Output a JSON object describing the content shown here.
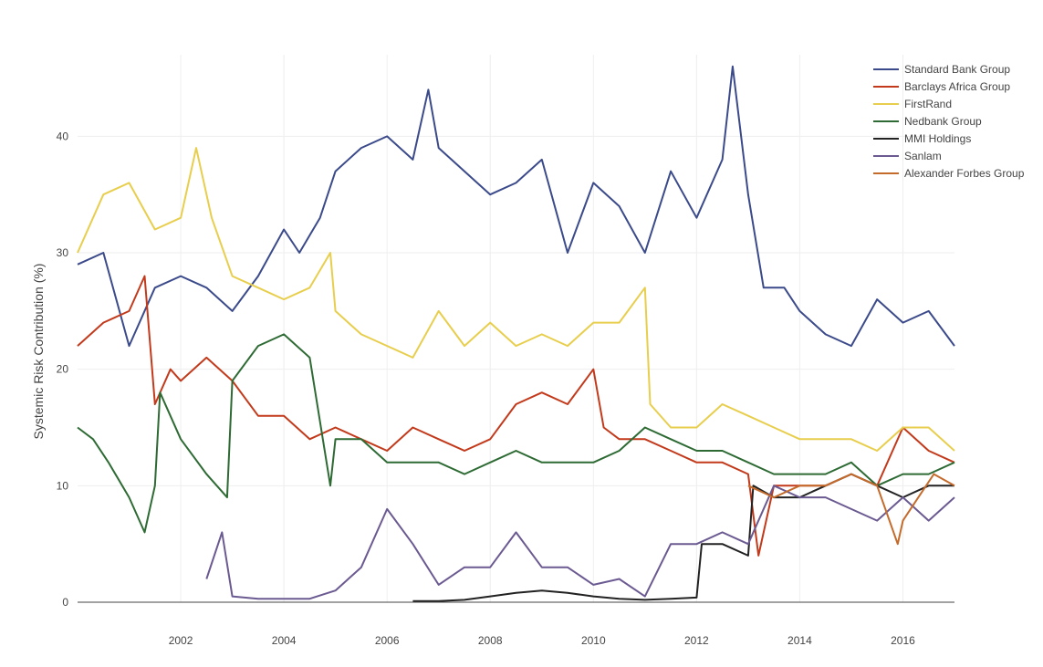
{
  "chart_data": {
    "type": "line",
    "title": "",
    "xlabel": "",
    "ylabel": "Systemic Risk Contribution (%)",
    "xlim": [
      2000.0,
      2017.0
    ],
    "ylim": [
      0,
      47
    ],
    "grid": true,
    "legend_position": "top-right",
    "x_ticks": [
      2002,
      2004,
      2006,
      2008,
      2010,
      2012,
      2014,
      2016
    ],
    "x_tick_labels": [
      "2002",
      "2004",
      "2006",
      "2008",
      "2010",
      "2012",
      "2014",
      "2016"
    ],
    "y_ticks": [
      0,
      10,
      20,
      30,
      40
    ],
    "y_tick_labels": [
      "0",
      "10",
      "20",
      "30",
      "40"
    ],
    "series": [
      {
        "name": "Standard Bank Group",
        "color": "#3b4a8a",
        "x": [
          2000.0,
          2000.5,
          2001.0,
          2001.5,
          2002.0,
          2002.5,
          2003.0,
          2003.5,
          2004.0,
          2004.3,
          2004.7,
          2005.0,
          2005.5,
          2006.0,
          2006.5,
          2006.8,
          2007.0,
          2007.5,
          2008.0,
          2008.5,
          2009.0,
          2009.5,
          2010.0,
          2010.5,
          2011.0,
          2011.5,
          2012.0,
          2012.5,
          2012.7,
          2013.0,
          2013.3,
          2013.7,
          2014.0,
          2014.5,
          2015.0,
          2015.5,
          2016.0,
          2016.5,
          2017.0
        ],
        "y": [
          29,
          30,
          22,
          27,
          28,
          27,
          25,
          28,
          32,
          30,
          33,
          37,
          39,
          40,
          38,
          44,
          39,
          37,
          35,
          36,
          38,
          30,
          36,
          34,
          30,
          37,
          33,
          38,
          46,
          35,
          27,
          27,
          25,
          23,
          22,
          26,
          24,
          25,
          22
        ]
      },
      {
        "name": "Barclays Africa Group",
        "color": "#c23a1b",
        "x": [
          2000.0,
          2000.5,
          2001.0,
          2001.3,
          2001.5,
          2001.8,
          2002.0,
          2002.5,
          2003.0,
          2003.5,
          2004.0,
          2004.5,
          2005.0,
          2005.5,
          2006.0,
          2006.5,
          2007.0,
          2007.5,
          2008.0,
          2008.5,
          2009.0,
          2009.5,
          2010.0,
          2010.2,
          2010.5,
          2011.0,
          2011.5,
          2012.0,
          2012.5,
          2013.0,
          2013.2,
          2013.5,
          2014.0,
          2014.5,
          2015.0,
          2015.5,
          2016.0,
          2016.5,
          2017.0
        ],
        "y": [
          22,
          24,
          25,
          28,
          17,
          20,
          19,
          21,
          19,
          16,
          16,
          14,
          15,
          14,
          13,
          15,
          14,
          13,
          14,
          17,
          18,
          17,
          20,
          15,
          14,
          14,
          13,
          12,
          12,
          11,
          4,
          10,
          10,
          10,
          11,
          10,
          15,
          13,
          12
        ]
      },
      {
        "name": "FirstRand",
        "color": "#e8ce4d",
        "x": [
          2000.0,
          2000.5,
          2001.0,
          2001.5,
          2002.0,
          2002.3,
          2002.6,
          2003.0,
          2003.5,
          2004.0,
          2004.5,
          2004.9,
          2005.0,
          2005.5,
          2006.0,
          2006.5,
          2007.0,
          2007.5,
          2008.0,
          2008.5,
          2009.0,
          2009.5,
          2010.0,
          2010.5,
          2011.0,
          2011.1,
          2011.5,
          2012.0,
          2012.5,
          2013.0,
          2013.5,
          2014.0,
          2014.5,
          2015.0,
          2015.5,
          2016.0,
          2016.5,
          2017.0
        ],
        "y": [
          30,
          35,
          36,
          32,
          33,
          39,
          33,
          28,
          27,
          26,
          27,
          30,
          25,
          23,
          22,
          21,
          25,
          22,
          24,
          22,
          23,
          22,
          24,
          24,
          27,
          17,
          15,
          15,
          17,
          16,
          15,
          14,
          14,
          14,
          13,
          15,
          15,
          13
        ]
      },
      {
        "name": "Nedbank Group",
        "color": "#2e6b34",
        "x": [
          2000.0,
          2000.3,
          2000.6,
          2001.0,
          2001.3,
          2001.5,
          2001.6,
          2002.0,
          2002.5,
          2002.9,
          2003.0,
          2003.5,
          2004.0,
          2004.5,
          2004.9,
          2005.0,
          2005.5,
          2006.0,
          2006.5,
          2007.0,
          2007.5,
          2008.0,
          2008.5,
          2009.0,
          2009.5,
          2010.0,
          2010.5,
          2011.0,
          2011.5,
          2012.0,
          2012.5,
          2013.0,
          2013.5,
          2014.0,
          2014.5,
          2015.0,
          2015.5,
          2016.0,
          2016.5,
          2017.0
        ],
        "y": [
          15,
          14,
          12,
          9,
          6,
          10,
          18,
          14,
          11,
          9,
          19,
          22,
          23,
          21,
          10,
          14,
          14,
          12,
          12,
          12,
          11,
          12,
          13,
          12,
          12,
          12,
          13,
          15,
          14,
          13,
          13,
          12,
          11,
          11,
          11,
          12,
          10,
          11,
          11,
          12
        ]
      },
      {
        "name": "MMI Holdings",
        "color": "#222222",
        "x": [
          2006.5,
          2007.0,
          2007.5,
          2008.0,
          2008.5,
          2009.0,
          2009.5,
          2010.0,
          2010.5,
          2011.0,
          2011.5,
          2012.0,
          2012.1,
          2012.5,
          2013.0,
          2013.1,
          2013.5,
          2014.0,
          2014.5,
          2015.0,
          2015.5,
          2016.0,
          2016.5,
          2017.0
        ],
        "y": [
          0.1,
          0.1,
          0.2,
          0.5,
          0.8,
          1.0,
          0.8,
          0.5,
          0.3,
          0.2,
          0.3,
          0.4,
          5,
          5,
          4,
          10,
          9,
          9,
          10,
          11,
          10,
          9,
          10,
          10
        ]
      },
      {
        "name": "Sanlam",
        "color": "#6b5a91",
        "x": [
          2002.5,
          2002.8,
          2003.0,
          2003.5,
          2004.0,
          2004.5,
          2005.0,
          2005.5,
          2006.0,
          2006.5,
          2007.0,
          2007.5,
          2008.0,
          2008.5,
          2009.0,
          2009.5,
          2010.0,
          2010.5,
          2011.0,
          2011.5,
          2012.0,
          2012.5,
          2013.0,
          2013.5,
          2014.0,
          2014.5,
          2015.0,
          2015.5,
          2016.0,
          2016.5,
          2017.0
        ],
        "y": [
          2,
          6,
          0.5,
          0.3,
          0.3,
          0.3,
          1,
          3,
          8,
          5,
          1.5,
          3,
          3,
          6,
          3,
          3,
          1.5,
          2,
          0.5,
          5,
          5,
          6,
          5,
          10,
          9,
          9,
          8,
          7,
          9,
          7,
          9
        ]
      },
      {
        "name": "Alexander Forbes Group",
        "color": "#c46b2c",
        "x": [
          2013.0,
          2013.5,
          2014.0,
          2014.5,
          2015.0,
          2015.5,
          2015.9,
          2016.0,
          2016.3,
          2016.6,
          2017.0
        ],
        "y": [
          10,
          9,
          10,
          10,
          11,
          10,
          5,
          7,
          9,
          11,
          10
        ]
      }
    ]
  }
}
